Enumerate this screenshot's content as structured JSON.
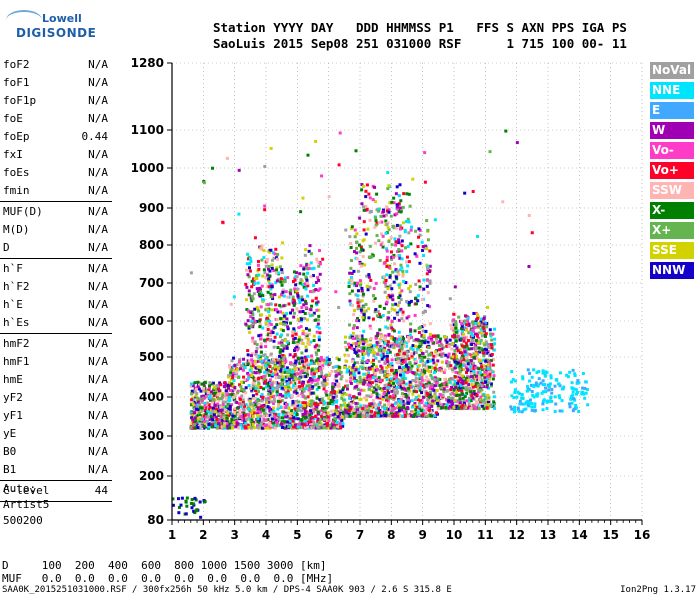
{
  "logo": {
    "line1": "Lowell",
    "line2": "DIGISONDE"
  },
  "header": {
    "line1": "Station YYYY DAY   DDD HHMMSS P1   FFS S AXN PPS IGA PS",
    "line2": "SaoLuis 2015 Sep08 251 031000 RSF      1 715 100 00- 11"
  },
  "params": [
    {
      "label": "foF2",
      "value": "N/A"
    },
    {
      "label": "foF1",
      "value": "N/A"
    },
    {
      "label": "foF1p",
      "value": "N/A"
    },
    {
      "label": "foE",
      "value": "N/A"
    },
    {
      "label": "foEp",
      "value": "0.44"
    },
    {
      "label": "fxI",
      "value": "N/A"
    },
    {
      "label": "foEs",
      "value": "N/A"
    },
    {
      "label": "fmin",
      "value": "N/A"
    },
    {
      "label": "MUF(D)",
      "value": "N/A"
    },
    {
      "label": "M(D)",
      "value": "N/A"
    },
    {
      "label": "D",
      "value": "N/A"
    },
    {
      "label": "h`F",
      "value": "N/A"
    },
    {
      "label": "h`F2",
      "value": "N/A"
    },
    {
      "label": "h`E",
      "value": "N/A"
    },
    {
      "label": "h`Es",
      "value": "N/A"
    },
    {
      "label": "hmF2",
      "value": "N/A"
    },
    {
      "label": "hmF1",
      "value": "N/A"
    },
    {
      "label": "hmE",
      "value": "N/A"
    },
    {
      "label": "yF2",
      "value": "N/A"
    },
    {
      "label": "yF1",
      "value": "N/A"
    },
    {
      "label": "yE",
      "value": "N/A"
    },
    {
      "label": "B0",
      "value": "N/A"
    },
    {
      "label": "B1",
      "value": "N/A"
    },
    {
      "label": "C-level",
      "value": "44"
    }
  ],
  "auto": [
    "Auto:",
    "Artist5",
    "500200"
  ],
  "legend": [
    {
      "label": "NoVal",
      "color": "#a0a0a0"
    },
    {
      "label": "NNE",
      "color": "#00e5ff"
    },
    {
      "label": "E",
      "color": "#40a8ff"
    },
    {
      "label": "W",
      "color": "#a000b4"
    },
    {
      "label": "Vo-",
      "color": "#ff3cc8"
    },
    {
      "label": "Vo+",
      "color": "#ff0028"
    },
    {
      "label": "SSW",
      "color": "#ffb4b4"
    },
    {
      "label": "X-",
      "color": "#008000"
    },
    {
      "label": "X+",
      "color": "#64b450"
    },
    {
      "label": "SSE",
      "color": "#d2d200"
    },
    {
      "label": "NNW",
      "color": "#1400c8"
    }
  ],
  "bottom": {
    "d_line": "D     100  200  400  600  800 1000 1500 3000 [km]",
    "muf_line": "MUF   0.0  0.0  0.0  0.0  0.0  0.0  0.0  0.0 [MHz]"
  },
  "footer": {
    "left": "SAA0K_2015251031000.RSF / 300fx256h 50 kHz 5.0 km / DPS-4 SAA0K 903 / 2.6 S 315.8 E",
    "right": "Ion2Png 1.3.17"
  },
  "chart_data": {
    "type": "scatter",
    "x_ticks": [
      "1",
      "2",
      "3",
      "4",
      "5",
      "6",
      "7",
      "8",
      "9",
      "10",
      "11",
      "12",
      "13",
      "14",
      "15",
      "16"
    ],
    "y_ticks": [
      "80",
      "200",
      "300",
      "400",
      "500",
      "600",
      "700",
      "800",
      "900",
      "1000",
      "1100",
      "1280"
    ],
    "xlim": [
      1,
      16
    ],
    "ylim": [
      80,
      1280
    ],
    "grid": true,
    "legend_position": "right",
    "series": [
      {
        "name": "F-layer trace (multi-colour)",
        "x_range": [
          1.6,
          11.3
        ],
        "y_range": [
          310,
          560
        ]
      },
      {
        "name": "Spread echoes",
        "x_range": [
          3.5,
          9.5
        ],
        "y_range": [
          560,
          960
        ]
      },
      {
        "name": "NNE/E echoes",
        "x_range": [
          11.8,
          14.3
        ],
        "y_range": [
          360,
          470
        ]
      },
      {
        "name": "Low trace",
        "x_range": [
          1.0,
          2.1
        ],
        "y_range": [
          80,
          150
        ]
      }
    ]
  }
}
